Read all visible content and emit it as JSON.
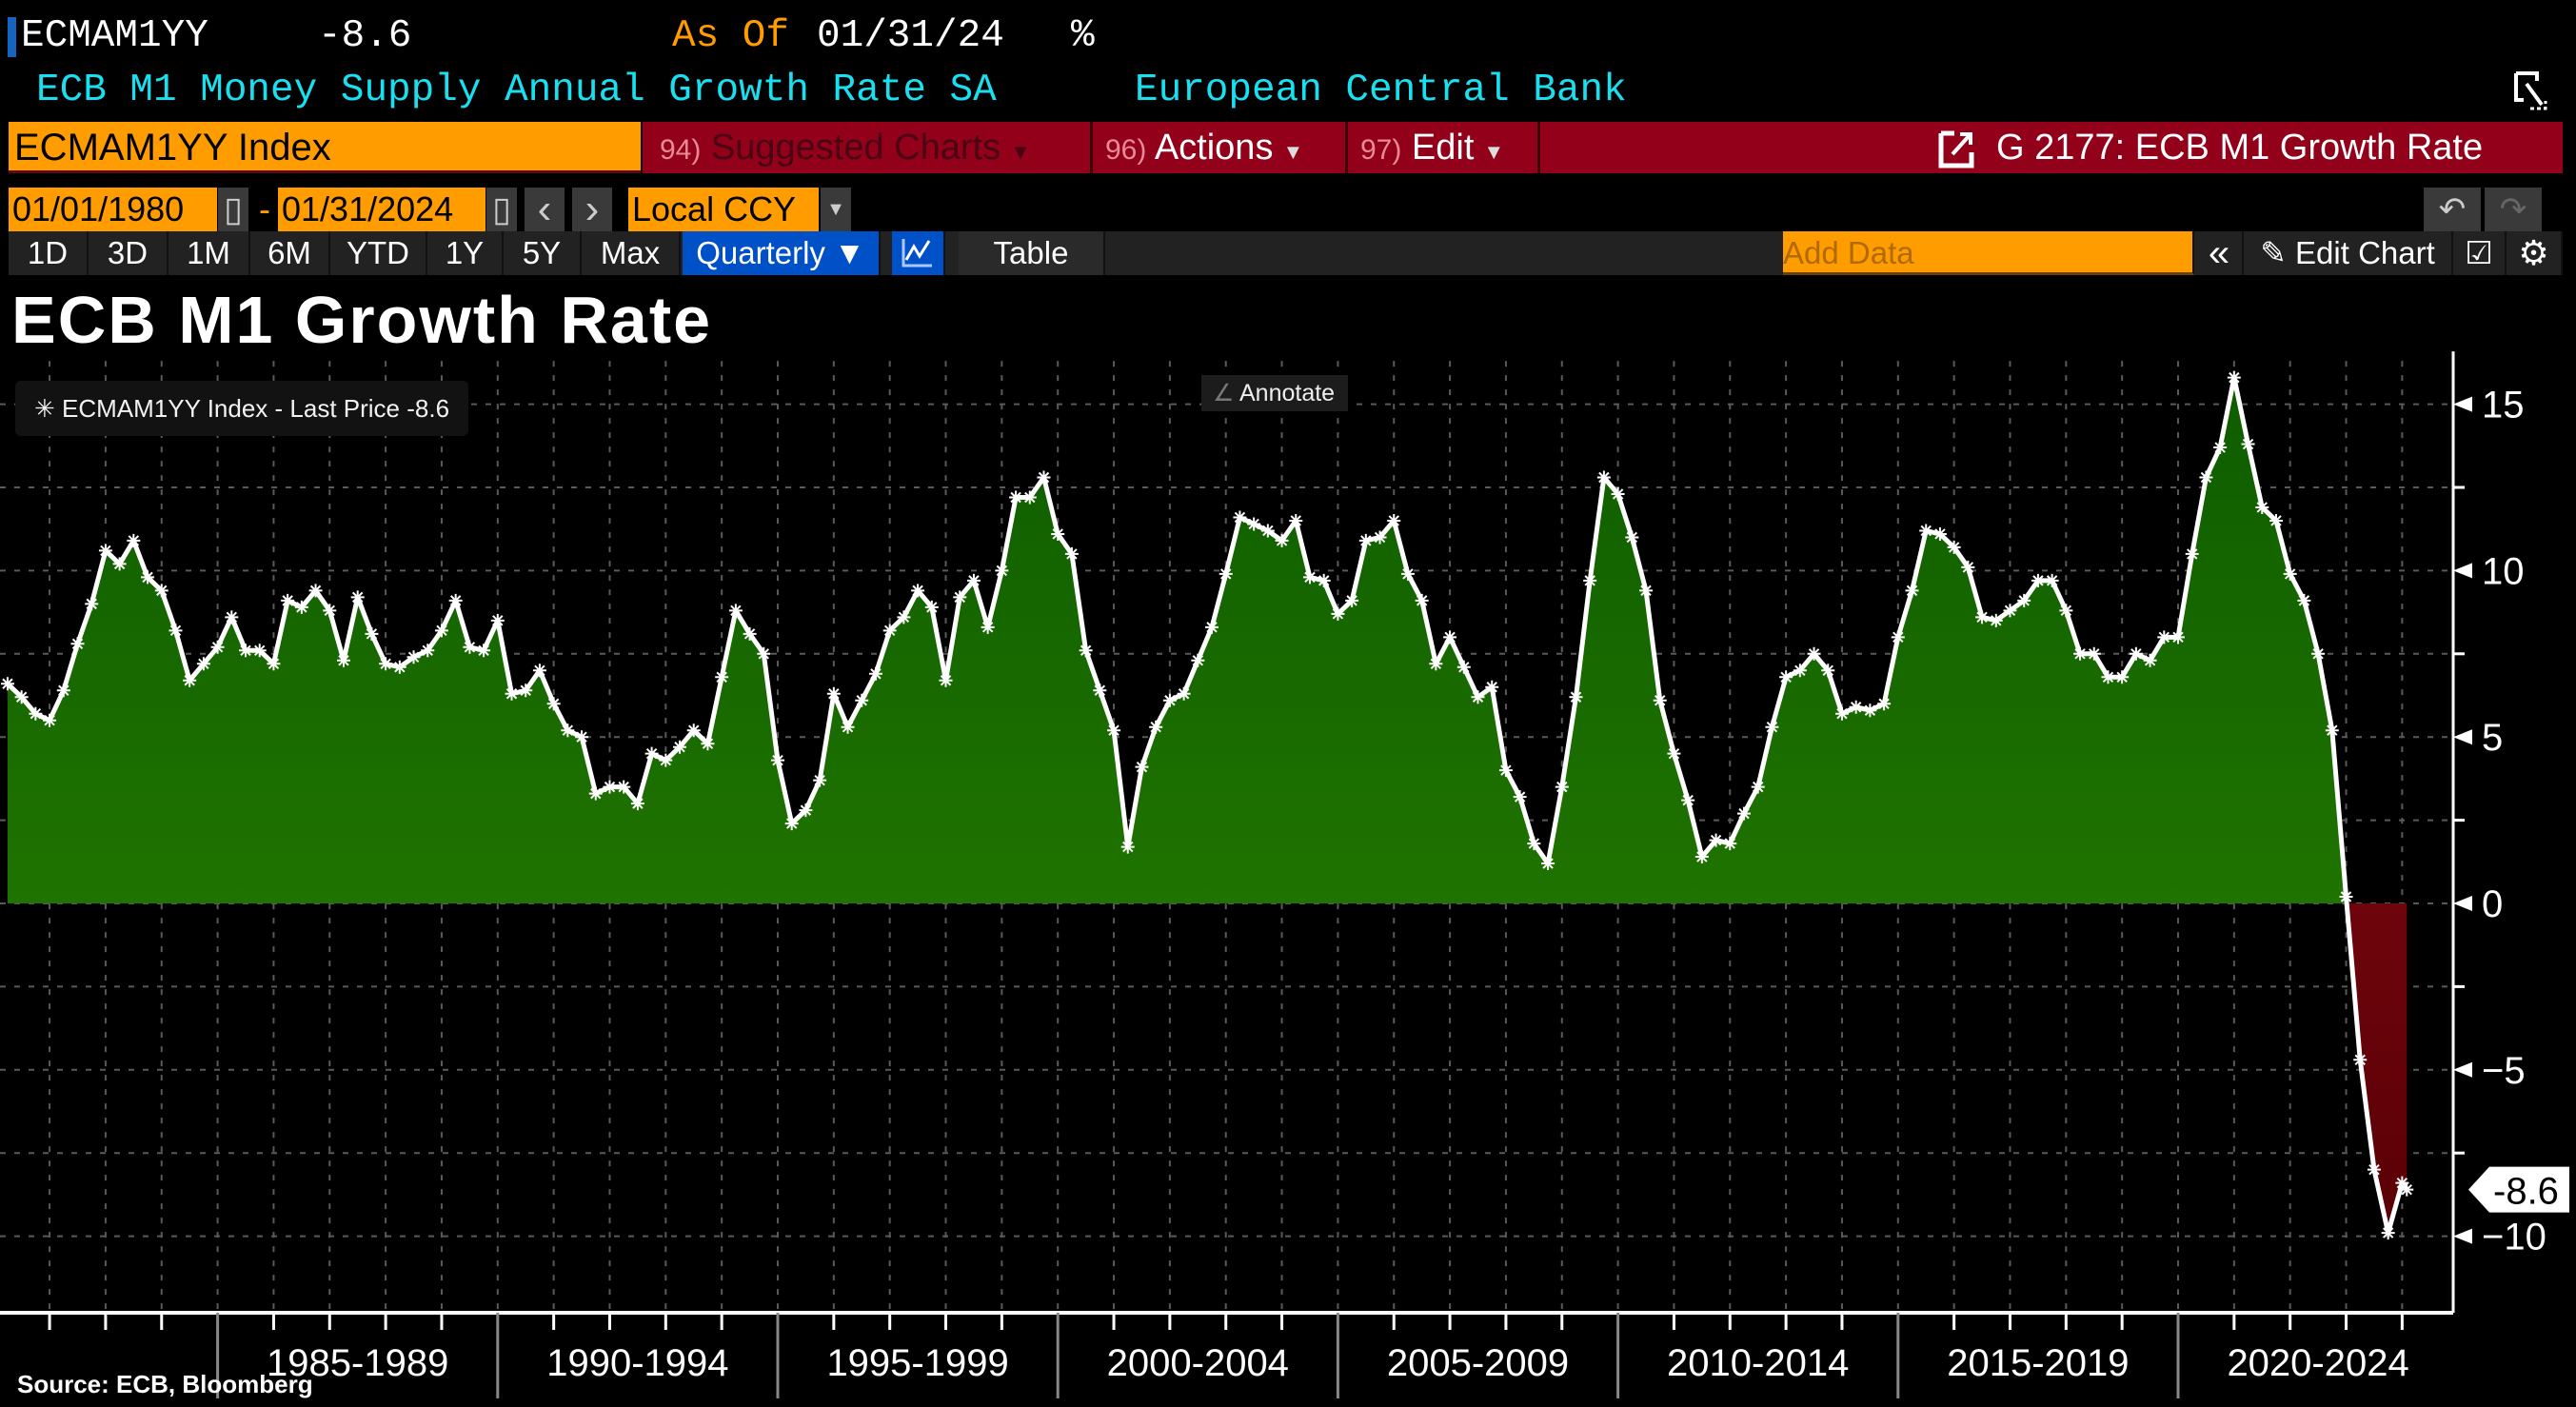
{
  "header": {
    "ticker": "ECMAM1YY",
    "last_value": "-8.6",
    "as_of_label": "As Of",
    "as_of_date": "01/31/24",
    "unit": "%",
    "description": "ECB M1 Money Supply Annual Growth Rate SA",
    "source_org": "European Central Bank"
  },
  "toolbar": {
    "security_input": "ECMAM1YY Index",
    "menus": [
      {
        "num": "94)",
        "label": "Suggested Charts"
      },
      {
        "num": "96)",
        "label": "Actions"
      },
      {
        "num": "97)",
        "label": "Edit"
      }
    ],
    "chart_ref": "G 2177: ECB M1 Growth Rate",
    "start_date": "01/01/1980",
    "date_sep": "-",
    "end_date": "01/31/2024",
    "prev": "‹",
    "next": "›",
    "currency": "Local CCY",
    "ranges": [
      "1D",
      "3D",
      "1M",
      "6M",
      "YTD",
      "1Y",
      "5Y",
      "Max"
    ],
    "frequency": "Quarterly ▼",
    "table_label": "Table",
    "add_data_placeholder": "Add Data",
    "collapse": "«",
    "edit_chart": "Edit Chart"
  },
  "chart": {
    "title": "ECB M1 Growth Rate",
    "legend": "ECMAM1YY Index - Last Price -8.6",
    "annotate": "Annotate",
    "source": "Source: ECB, Bloomberg"
  },
  "colors": {
    "positive_fill_top": "#0e5c00",
    "positive_fill_bottom": "#2a8200",
    "negative_fill_top": "#8e0c18",
    "negative_fill_bottom": "#5a0005",
    "line": "#ffffff",
    "accent_orange": "#ff9c00",
    "menu_red": "#92001a",
    "header_cyan": "#19e0f0",
    "active_blue": "#0050c8"
  },
  "chart_data": {
    "type": "area",
    "series_name": "ECMAM1YY Index - Last Price",
    "frequency": "quarterly",
    "ylim": [
      -12.3,
      16.3
    ],
    "xlim": [
      "1981-03",
      "2024-12"
    ],
    "y_ticks": [
      15,
      10,
      5,
      0,
      -5,
      -10
    ],
    "x_period_labels": [
      "1985-1989",
      "1990-1994",
      "1995-1999",
      "2000-2004",
      "2005-2009",
      "2010-2014",
      "2015-2019",
      "2020-2024"
    ],
    "grid": true,
    "legend_position": "top-left",
    "y_axis_side": "right",
    "last_value_label": "-8.6",
    "x": [
      "1981-03",
      "1981-06",
      "1981-09",
      "1981-12",
      "1982-03",
      "1982-06",
      "1982-09",
      "1982-12",
      "1983-03",
      "1983-06",
      "1983-09",
      "1983-12",
      "1984-03",
      "1984-06",
      "1984-09",
      "1984-12",
      "1985-03",
      "1985-06",
      "1985-09",
      "1985-12",
      "1986-03",
      "1986-06",
      "1986-09",
      "1986-12",
      "1987-03",
      "1987-06",
      "1987-09",
      "1987-12",
      "1988-03",
      "1988-06",
      "1988-09",
      "1988-12",
      "1989-03",
      "1989-06",
      "1989-09",
      "1989-12",
      "1990-03",
      "1990-06",
      "1990-09",
      "1990-12",
      "1991-03",
      "1991-06",
      "1991-09",
      "1991-12",
      "1992-03",
      "1992-06",
      "1992-09",
      "1992-12",
      "1993-03",
      "1993-06",
      "1993-09",
      "1993-12",
      "1994-03",
      "1994-06",
      "1994-09",
      "1994-12",
      "1995-03",
      "1995-06",
      "1995-09",
      "1995-12",
      "1996-03",
      "1996-06",
      "1996-09",
      "1996-12",
      "1997-03",
      "1997-06",
      "1997-09",
      "1997-12",
      "1998-03",
      "1998-06",
      "1998-09",
      "1998-12",
      "1999-03",
      "1999-06",
      "1999-09",
      "1999-12",
      "2000-03",
      "2000-06",
      "2000-09",
      "2000-12",
      "2001-03",
      "2001-06",
      "2001-09",
      "2001-12",
      "2002-03",
      "2002-06",
      "2002-09",
      "2002-12",
      "2003-03",
      "2003-06",
      "2003-09",
      "2003-12",
      "2004-03",
      "2004-06",
      "2004-09",
      "2004-12",
      "2005-03",
      "2005-06",
      "2005-09",
      "2005-12",
      "2006-03",
      "2006-06",
      "2006-09",
      "2006-12",
      "2007-03",
      "2007-06",
      "2007-09",
      "2007-12",
      "2008-03",
      "2008-06",
      "2008-09",
      "2008-12",
      "2009-03",
      "2009-06",
      "2009-09",
      "2009-12",
      "2010-03",
      "2010-06",
      "2010-09",
      "2010-12",
      "2011-03",
      "2011-06",
      "2011-09",
      "2011-12",
      "2012-03",
      "2012-06",
      "2012-09",
      "2012-12",
      "2013-03",
      "2013-06",
      "2013-09",
      "2013-12",
      "2014-03",
      "2014-06",
      "2014-09",
      "2014-12",
      "2015-03",
      "2015-06",
      "2015-09",
      "2015-12",
      "2016-03",
      "2016-06",
      "2016-09",
      "2016-12",
      "2017-03",
      "2017-06",
      "2017-09",
      "2017-12",
      "2018-03",
      "2018-06",
      "2018-09",
      "2018-12",
      "2019-03",
      "2019-06",
      "2019-09",
      "2019-12",
      "2020-03",
      "2020-06",
      "2020-09",
      "2020-12",
      "2021-03",
      "2021-06",
      "2021-09",
      "2021-12",
      "2022-03",
      "2022-06",
      "2022-09",
      "2022-12",
      "2023-03",
      "2023-06",
      "2023-09",
      "2023-12",
      "2024-01"
    ],
    "values": [
      6.6,
      6.2,
      5.7,
      5.5,
      6.4,
      7.8,
      9.0,
      10.6,
      10.2,
      10.9,
      9.8,
      9.4,
      8.2,
      6.7,
      7.2,
      7.7,
      8.6,
      7.6,
      7.6,
      7.2,
      9.1,
      8.9,
      9.4,
      8.8,
      7.3,
      9.2,
      8.1,
      7.2,
      7.1,
      7.4,
      7.6,
      8.2,
      9.1,
      7.7,
      7.6,
      8.5,
      6.3,
      6.4,
      7.0,
      6.0,
      5.2,
      5.0,
      3.3,
      3.5,
      3.5,
      3.0,
      4.5,
      4.3,
      4.7,
      5.2,
      4.8,
      6.8,
      8.8,
      8.1,
      7.5,
      4.3,
      2.4,
      2.8,
      3.7,
      6.3,
      5.3,
      6.1,
      6.9,
      8.2,
      8.6,
      9.4,
      8.9,
      6.7,
      9.2,
      9.7,
      8.3,
      10.0,
      12.2,
      12.2,
      12.8,
      11.1,
      10.5,
      7.6,
      6.4,
      5.2,
      1.7,
      4.1,
      5.3,
      6.1,
      6.3,
      7.3,
      8.3,
      9.9,
      11.6,
      11.4,
      11.2,
      10.9,
      11.5,
      9.8,
      9.7,
      8.7,
      9.1,
      10.9,
      11.0,
      11.5,
      9.9,
      9.1,
      7.2,
      8.0,
      7.1,
      6.2,
      6.5,
      4.0,
      3.2,
      1.8,
      1.2,
      3.5,
      6.2,
      9.7,
      12.8,
      12.3,
      11.0,
      9.4,
      6.1,
      4.5,
      3.1,
      1.4,
      1.9,
      1.8,
      2.7,
      3.5,
      5.3,
      6.8,
      7.0,
      7.5,
      7.0,
      5.7,
      5.9,
      5.8,
      6.0,
      8.0,
      9.4,
      11.2,
      11.1,
      10.7,
      10.1,
      8.6,
      8.5,
      8.8,
      9.1,
      9.7,
      9.7,
      8.8,
      7.5,
      7.5,
      6.8,
      6.8,
      7.5,
      7.3,
      8.0,
      8.0,
      10.5,
      12.8,
      13.7,
      15.8,
      13.8,
      11.9,
      11.5,
      9.9,
      9.1,
      7.5,
      5.2,
      0.2,
      -4.7,
      -8.0,
      -9.9,
      -8.4,
      -8.6
    ]
  }
}
